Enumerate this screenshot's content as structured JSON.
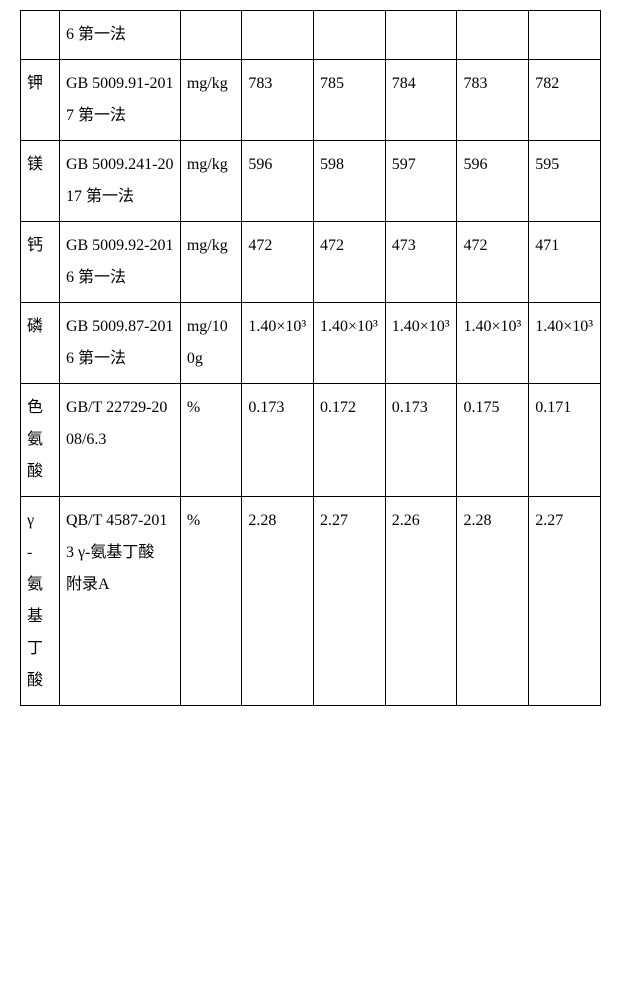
{
  "table": {
    "background_color": "#ffffff",
    "border_color": "#000000",
    "font_family": "SimSun",
    "cell_fontsize": 16,
    "rows": [
      {
        "name": "",
        "method": "6 第一法",
        "unit": "",
        "v1": "",
        "v2": "",
        "v3": "",
        "v4": "",
        "v5": ""
      },
      {
        "name": "钾",
        "method": "GB 5009.91-2017 第一法",
        "unit": "mg/kg",
        "v1": "783",
        "v2": "785",
        "v3": "784",
        "v4": "783",
        "v5": "782"
      },
      {
        "name": "镁",
        "method": "GB 5009.241-2017 第一法",
        "unit": "mg/kg",
        "v1": "596",
        "v2": "598",
        "v3": "597",
        "v4": "596",
        "v5": "595"
      },
      {
        "name": "钙",
        "method": "GB 5009.92-2016 第一法",
        "unit": "mg/kg",
        "v1": "472",
        "v2": "472",
        "v3": "473",
        "v4": "472",
        "v5": "471"
      },
      {
        "name": "磷",
        "method": "GB 5009.87-2016 第一法",
        "unit": "mg/100g",
        "v1": "1.40×10³",
        "v2": "1.40×10³",
        "v3": "1.40×10³",
        "v4": "1.40×10³",
        "v5": "1.40×10³"
      },
      {
        "name": "色氨酸",
        "method": "GB/T 22729-2008/6.3",
        "unit": "%",
        "v1": "0.173",
        "v2": "0.172",
        "v3": "0.173",
        "v4": "0.175",
        "v5": "0.171"
      },
      {
        "name": "γ-氨基丁酸",
        "method": "QB/T 4587-2013 γ-氨基丁酸 附录A",
        "unit": "%",
        "v1": "2.28",
        "v2": "2.27",
        "v3": "2.26",
        "v4": "2.28",
        "v5": "2.27"
      }
    ]
  }
}
